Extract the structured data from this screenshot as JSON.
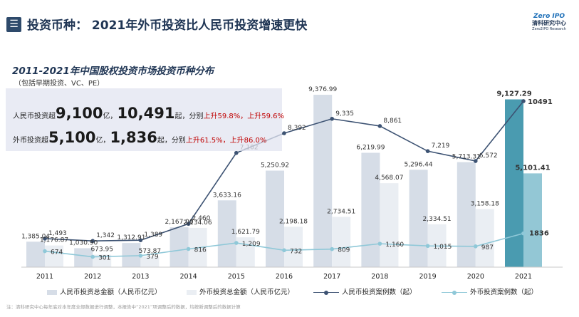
{
  "header": {
    "menu_icon": "menu-icon",
    "title": "投资币种： 2021年外币投资比人民币投资增速更快",
    "logo": {
      "line1": "Zero IPO",
      "line2": "清科研究中心",
      "line3": "Zero2IPO Research"
    }
  },
  "summary": {
    "rmb": {
      "prefix": "人民币投资超",
      "amount": "9,100",
      "amount_unit": "亿，",
      "cases": "10,491",
      "cases_unit": "起，分别",
      "growth": "上升59.8%，上升59.6%"
    },
    "fx": {
      "prefix": "外币投资超",
      "amount": "5,100",
      "amount_unit": "亿，",
      "cases": "1,836",
      "cases_unit": "起，分别",
      "growth": "上升61.5%，上升86.0%"
    }
  },
  "footnote": "注：清科研究中心每年底对本年度全部数据进行调整，本报告中“2021”项调整后的数据，均按新调整后的数据计算",
  "colors": {
    "rmb_bar": "#d6dde7",
    "fx_bar": "#eaeef3",
    "rmb_line": "#3d5373",
    "fx_line": "#8fc8d8",
    "hl_rmb_bar": "#4a9bb0",
    "hl_fx_bar": "#93c7d5",
    "title": "#1f3554"
  },
  "chart_data": {
    "type": "bar+line",
    "title": "2011-2021年中国股权投资市场投资币种分布",
    "subtitle": "（包括早期投资、VC、PE）",
    "categories": [
      "2011",
      "2012",
      "2013",
      "2014",
      "2015",
      "2016",
      "2017",
      "2018",
      "2019",
      "2020",
      "2021"
    ],
    "series": [
      {
        "name": "人民币投资总金额（人民币亿元）",
        "type": "bar",
        "axis": "amount",
        "values": [
          1385.04,
          1030.9,
          1312.91,
          2167.0,
          3633.16,
          5250.92,
          9376.99,
          6219.99,
          5296.44,
          5713.31,
          9127.29
        ],
        "labels": [
          "1,385.04",
          "1,030.90",
          "1,312.91",
          "2,167.00",
          "3,633.16",
          "5,250.92",
          "9,376.99",
          "6,219.99",
          "5,296.44",
          "5,713.31",
          "9,127.29"
        ]
      },
      {
        "name": "外币投资总金额（人民币亿元）",
        "type": "bar",
        "axis": "amount",
        "values": [
          1176.87,
          673.95,
          573.87,
          2134.06,
          1621.79,
          2198.18,
          2734.51,
          4568.07,
          2334.51,
          3158.18,
          5101.41
        ],
        "labels": [
          "1,176.87",
          "673.95",
          "573.87",
          "2,134.06",
          "1,621.79",
          "2,198.18",
          "2,734.51",
          "4,568.07",
          "2,334.51",
          "3,158.18",
          "5,101.41"
        ]
      },
      {
        "name": "人民币投资案例数（起）",
        "type": "line",
        "axis": "count",
        "values": [
          1493,
          1342,
          1389,
          2460,
          7102,
          8392,
          9335,
          8861,
          7219,
          6572,
          10491
        ],
        "labels": [
          "1,493",
          "1,342",
          "1,389",
          "2,460",
          "7,102",
          "8,392",
          "9,335",
          "8,861",
          "7,219",
          "6,572",
          "10491"
        ]
      },
      {
        "name": "外币投资案例数（起）",
        "type": "line",
        "axis": "count",
        "values": [
          674,
          301,
          379,
          816,
          1209,
          732,
          809,
          1160,
          1015,
          987,
          1836
        ],
        "labels": [
          "674",
          "301",
          "379",
          "816",
          "1,209",
          "732",
          "809",
          "1,160",
          "1,015",
          "987",
          "1836"
        ]
      }
    ],
    "highlight_category": "2021",
    "legend_position": "bottom",
    "grid": false
  }
}
